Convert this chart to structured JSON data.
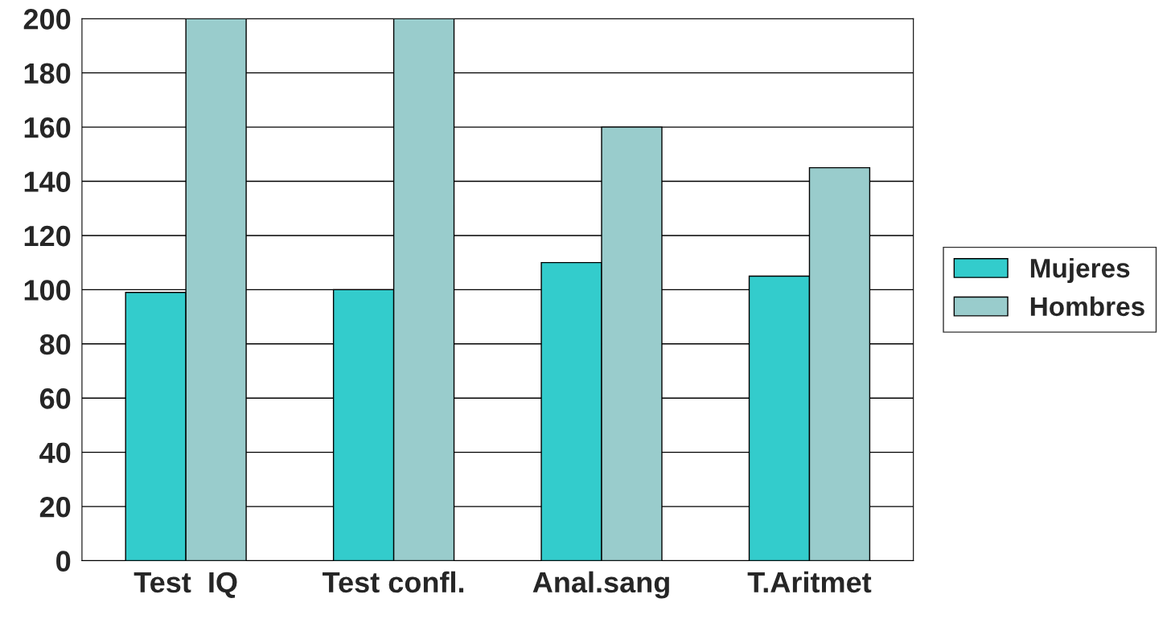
{
  "chart_data": {
    "type": "bar",
    "categories": [
      "Test  IQ",
      "Test confl.",
      "Anal.sang",
      "T.Aritmet"
    ],
    "series": [
      {
        "name": "Mujeres",
        "color": "#33cccc",
        "values": [
          99,
          100,
          110,
          105
        ]
      },
      {
        "name": "Hombres",
        "color": "#99cccc",
        "values": [
          200,
          200,
          160,
          145
        ]
      }
    ],
    "ylim": [
      0,
      200
    ],
    "yticks": [
      0,
      20,
      40,
      60,
      80,
      100,
      120,
      140,
      160,
      180,
      200
    ],
    "grid": "y",
    "legend": "right"
  }
}
